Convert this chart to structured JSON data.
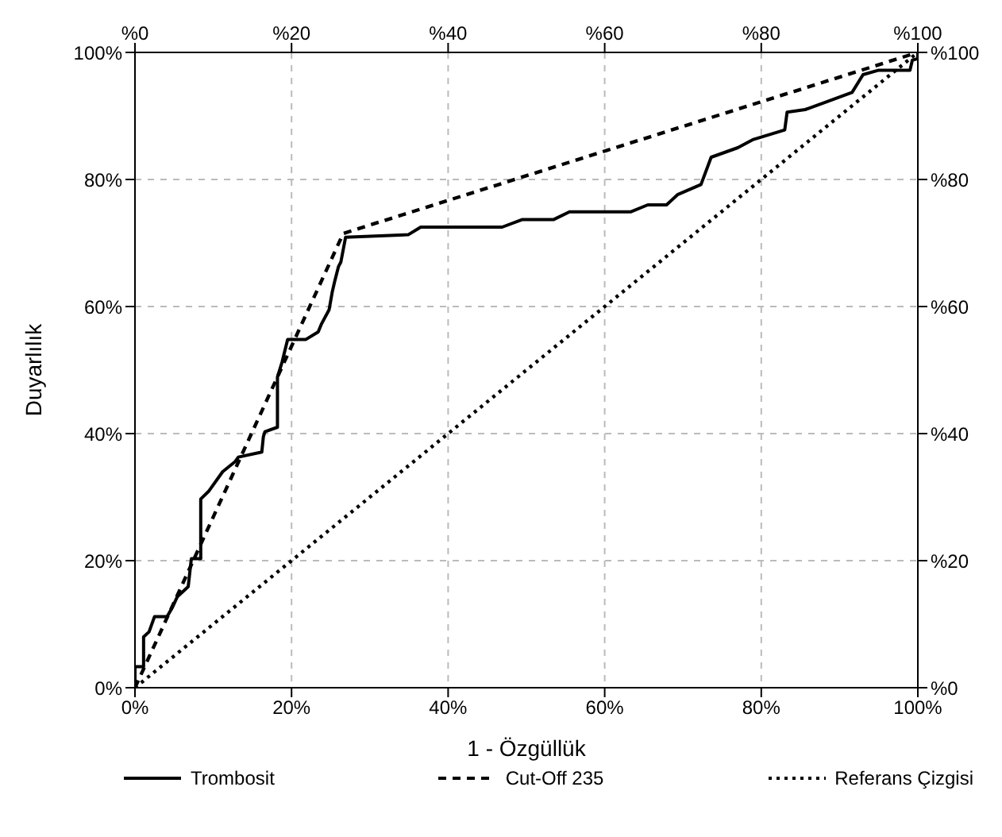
{
  "chart_data": {
    "type": "line",
    "xlabel": "1 - Özgüllük",
    "ylabel": "Duyarlılık",
    "xlim": [
      0,
      100
    ],
    "ylim": [
      0,
      100
    ],
    "xticks": [
      {
        "value": 0,
        "label": "0%"
      },
      {
        "value": 20,
        "label": "20%"
      },
      {
        "value": 40,
        "label": "40%"
      },
      {
        "value": 60,
        "label": "60%"
      },
      {
        "value": 80,
        "label": "80%"
      },
      {
        "value": 100,
        "label": "100%"
      }
    ],
    "yticks": [
      {
        "value": 0,
        "label": "0%"
      },
      {
        "value": 20,
        "label": "20%"
      },
      {
        "value": 40,
        "label": "40%"
      },
      {
        "value": 60,
        "label": "60%"
      },
      {
        "value": 80,
        "label": "80%"
      },
      {
        "value": 100,
        "label": "100%"
      }
    ],
    "x2lim": [
      0,
      100
    ],
    "x2ticks": [
      {
        "value": 0,
        "label": "%0"
      },
      {
        "value": 20,
        "label": "%20"
      },
      {
        "value": 40,
        "label": "%40"
      },
      {
        "value": 60,
        "label": "%60"
      },
      {
        "value": 80,
        "label": "%80"
      },
      {
        "value": 100,
        "label": "%100"
      }
    ],
    "y2lim": [
      0,
      100
    ],
    "y2ticks": [
      {
        "value": 0,
        "label": "%0"
      },
      {
        "value": 20,
        "label": "%20"
      },
      {
        "value": 40,
        "label": "%40"
      },
      {
        "value": 60,
        "label": "%60"
      },
      {
        "value": 80,
        "label": "%80"
      },
      {
        "value": 100,
        "label": "%100"
      }
    ],
    "grid": true,
    "legend": "bottom",
    "marker": "none",
    "series": [
      {
        "name": "Trombosit",
        "color": "#000000",
        "line_style": "solid",
        "x": [
          0,
          0,
          1.1,
          1.1,
          1.8,
          2.5,
          4.1,
          4.8,
          5.4,
          6.8,
          7.2,
          8.4,
          8.4,
          9.4,
          11.2,
          12.8,
          13.2,
          16.2,
          16.4,
          16.6,
          18.2,
          18.2,
          18.8,
          19.5,
          21.8,
          23.4,
          23.8,
          24.8,
          25.2,
          25.5,
          26,
          26.3,
          26.9,
          34.9,
          36.5,
          46.9,
          49.5,
          53.5,
          55.5,
          58.9,
          63.3,
          65.5,
          67.9,
          69.3,
          72.3,
          73.6,
          77,
          79,
          83,
          83.3,
          85.6,
          88.3,
          91.6,
          93,
          95,
          99,
          99.3,
          100,
          100
        ],
        "values": [
          0,
          3.3,
          3.3,
          8,
          8.8,
          11.2,
          11.2,
          12.7,
          14.3,
          15.9,
          20.3,
          20.3,
          29.7,
          30.9,
          34,
          35.6,
          36.3,
          37.1,
          39.5,
          40.3,
          41,
          48.9,
          51.3,
          54.8,
          54.8,
          56,
          57.2,
          59.5,
          62.3,
          63.9,
          66.3,
          67,
          70.9,
          71.3,
          72.5,
          72.5,
          73.7,
          73.7,
          74.9,
          74.9,
          74.9,
          76,
          76,
          77.6,
          79.2,
          83.5,
          85,
          86.3,
          87.8,
          90.6,
          91,
          92.2,
          93.7,
          96.5,
          97.2,
          97.2,
          98.8,
          99,
          100
        ]
      },
      {
        "name": "Cut-Off 235",
        "color": "#000000",
        "line_style": "dashed",
        "x": [
          0,
          26.6,
          100
        ],
        "values": [
          0,
          71.5,
          100
        ]
      },
      {
        "name": "Referans Çizgisi",
        "color": "#000000",
        "line_style": "dotted",
        "x": [
          0,
          100
        ],
        "values": [
          0,
          100
        ]
      }
    ]
  }
}
